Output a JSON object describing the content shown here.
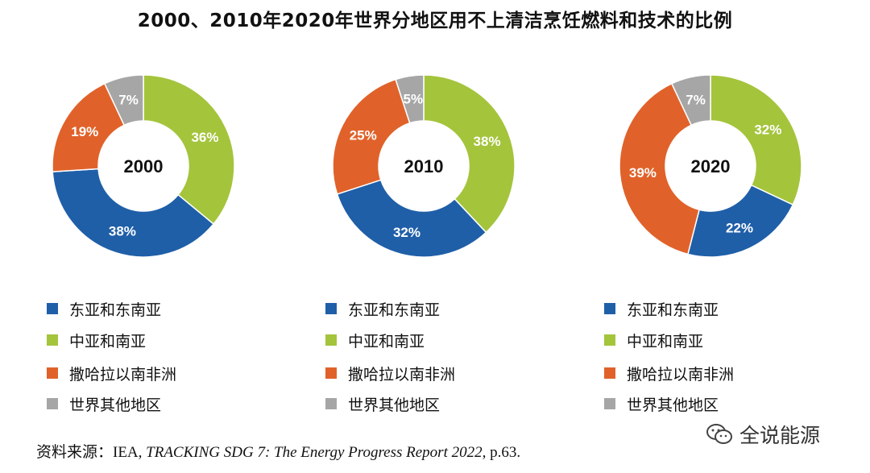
{
  "title": "2000、2010年2020年世界分地区用不上清洁烹饪燃料和技术的比例",
  "chart_data": [
    {
      "type": "pie",
      "label": "2000",
      "series": [
        {
          "name": "东亚和东南亚",
          "value": 38,
          "label": "38%",
          "color": "#1f5fa8"
        },
        {
          "name": "中亚和南亚",
          "value": 36,
          "label": "36%",
          "color": "#a4c43c"
        },
        {
          "name": "撒哈拉以南非洲",
          "value": 19,
          "label": "19%",
          "color": "#e0622a"
        },
        {
          "name": "世界其他地区",
          "value": 7,
          "label": "7%",
          "color": "#a6a6a6"
        }
      ]
    },
    {
      "type": "pie",
      "label": "2010",
      "series": [
        {
          "name": "东亚和东南亚",
          "value": 32,
          "label": "32%",
          "color": "#1f5fa8"
        },
        {
          "name": "中亚和南亚",
          "value": 38,
          "label": "38%",
          "color": "#a4c43c"
        },
        {
          "name": "撒哈拉以南非洲",
          "value": 25,
          "label": "25%",
          "color": "#e0622a"
        },
        {
          "name": "世界其他地区",
          "value": 5,
          "label": "5%",
          "color": "#a6a6a6"
        }
      ]
    },
    {
      "type": "pie",
      "label": "2020",
      "series": [
        {
          "name": "东亚和东南亚",
          "value": 22,
          "label": "22%",
          "color": "#1f5fa8"
        },
        {
          "name": "中亚和南亚",
          "value": 32,
          "label": "32%",
          "color": "#a4c43c"
        },
        {
          "name": "撒哈拉以南非洲",
          "value": 39,
          "label": "39%",
          "color": "#e0622a"
        },
        {
          "name": "世界其他地区",
          "value": 7,
          "label": "7%",
          "color": "#a6a6a6"
        }
      ]
    }
  ],
  "legend": [
    {
      "name": "东亚和东南亚",
      "color": "#1f5fa8"
    },
    {
      "name": "中亚和南亚",
      "color": "#a4c43c"
    },
    {
      "name": "撒哈拉以南非洲",
      "color": "#e0622a"
    },
    {
      "name": "世界其他地区",
      "color": "#a6a6a6"
    }
  ],
  "source": {
    "prefix": "资料来源：IEA, ",
    "italic": "TRACKING SDG 7: The Energy Progress Report 2022,",
    "suffix": " p.63."
  },
  "watermark": {
    "text": "全说能源",
    "icon": "wechat-icon"
  }
}
